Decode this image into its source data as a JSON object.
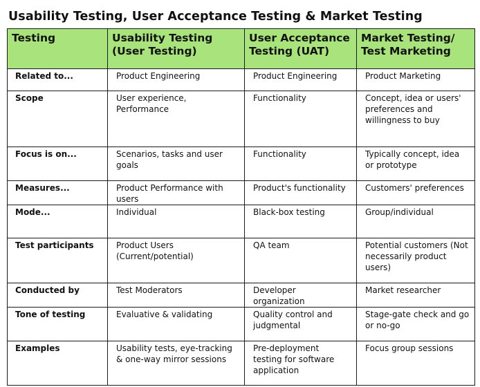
{
  "title": "Usability Testing, User Acceptance Testing & Market Testing",
  "header": [
    "Testing",
    "Usability Testing (User Testing)",
    "User Acceptance Testing (UAT)",
    "Market Testing/ Test Marketing"
  ],
  "rows": [
    {
      "label": "Related to...",
      "cells": [
        "Product Engineering",
        "Product Engineering",
        "Product Marketing"
      ]
    },
    {
      "label": "Scope",
      "cells": [
        "User experience, Performance",
        "Functionality",
        "Concept, idea or users' preferences and willingness to buy"
      ]
    },
    {
      "label": "Focus is on...",
      "cells": [
        "Scenarios, tasks and user goals",
        "Functionality",
        "Typically concept, idea or prototype"
      ]
    },
    {
      "label": "Measures...",
      "cells": [
        "Product Performance with users",
        "Product's functionality",
        "Customers' preferences"
      ]
    },
    {
      "label": "Mode...",
      "cells": [
        "Individual",
        "Black-box testing",
        "Group/individual"
      ]
    },
    {
      "label": "Test participants",
      "cells": [
        "Product Users (Current/potential)",
        "QA team",
        "Potential customers (Not necessarily product users)"
      ]
    },
    {
      "label": "Conducted by",
      "cells": [
        "Test Moderators",
        "Developer organization",
        "Market researcher"
      ]
    },
    {
      "label": "Tone of testing",
      "cells": [
        "Evaluative & validating",
        "Quality control and judgmental",
        "Stage-gate check and go or no-go"
      ]
    },
    {
      "label": "Examples",
      "cells": [
        "Usability tests, eye-tracking & one-way mirror sessions",
        "Pre-deployment testing for software application",
        "Focus group sessions"
      ]
    }
  ],
  "colors": {
    "header_bg": "#a8e37c",
    "border": "#1a1a1a",
    "text": "#111111"
  }
}
